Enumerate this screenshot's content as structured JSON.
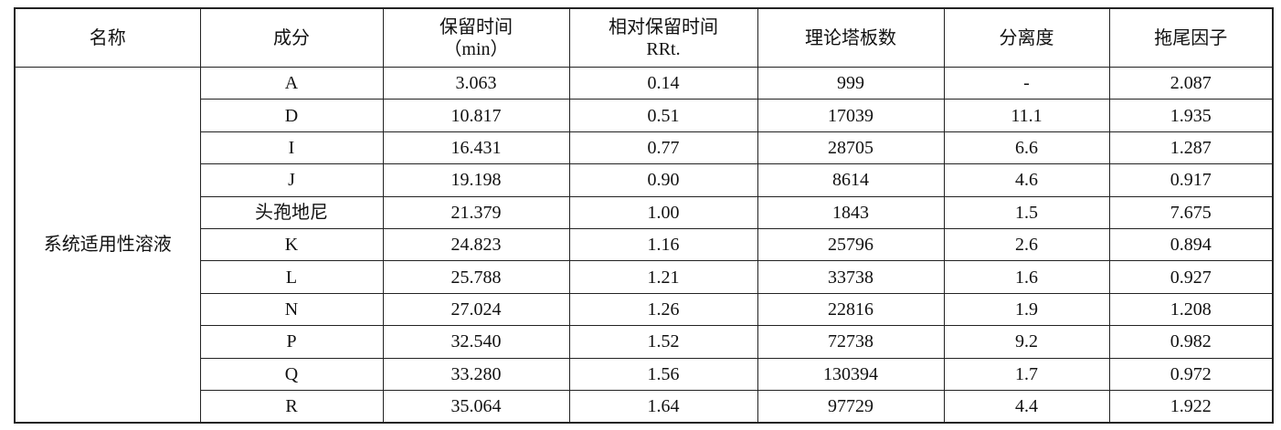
{
  "table": {
    "header": [
      [
        "名称"
      ],
      [
        "成分"
      ],
      [
        "保留时间",
        "（min）"
      ],
      [
        "相对保留时间",
        "RRt."
      ],
      [
        "理论塔板数"
      ],
      [
        "分离度"
      ],
      [
        "拖尾因子"
      ]
    ],
    "name": "系统适用性溶液",
    "rows": [
      [
        "A",
        "3.063",
        "0.14",
        "999",
        "-",
        "2.087"
      ],
      [
        "D",
        "10.817",
        "0.51",
        "17039",
        "11.1",
        "1.935"
      ],
      [
        "I",
        "16.431",
        "0.77",
        "28705",
        "6.6",
        "1.287"
      ],
      [
        "J",
        "19.198",
        "0.90",
        "8614",
        "4.6",
        "0.917"
      ],
      [
        "头孢地尼",
        "21.379",
        "1.00",
        "1843",
        "1.5",
        "7.675"
      ],
      [
        "K",
        "24.823",
        "1.16",
        "25796",
        "2.6",
        "0.894"
      ],
      [
        "L",
        "25.788",
        "1.21",
        "33738",
        "1.6",
        "0.927"
      ],
      [
        "N",
        "27.024",
        "1.26",
        "22816",
        "1.9",
        "1.208"
      ],
      [
        "P",
        "32.540",
        "1.52",
        "72738",
        "9.2",
        "0.982"
      ],
      [
        "Q",
        "33.280",
        "1.56",
        "130394",
        "1.7",
        "0.972"
      ],
      [
        "R",
        "35.064",
        "1.64",
        "97729",
        "4.4",
        "1.922"
      ]
    ]
  }
}
